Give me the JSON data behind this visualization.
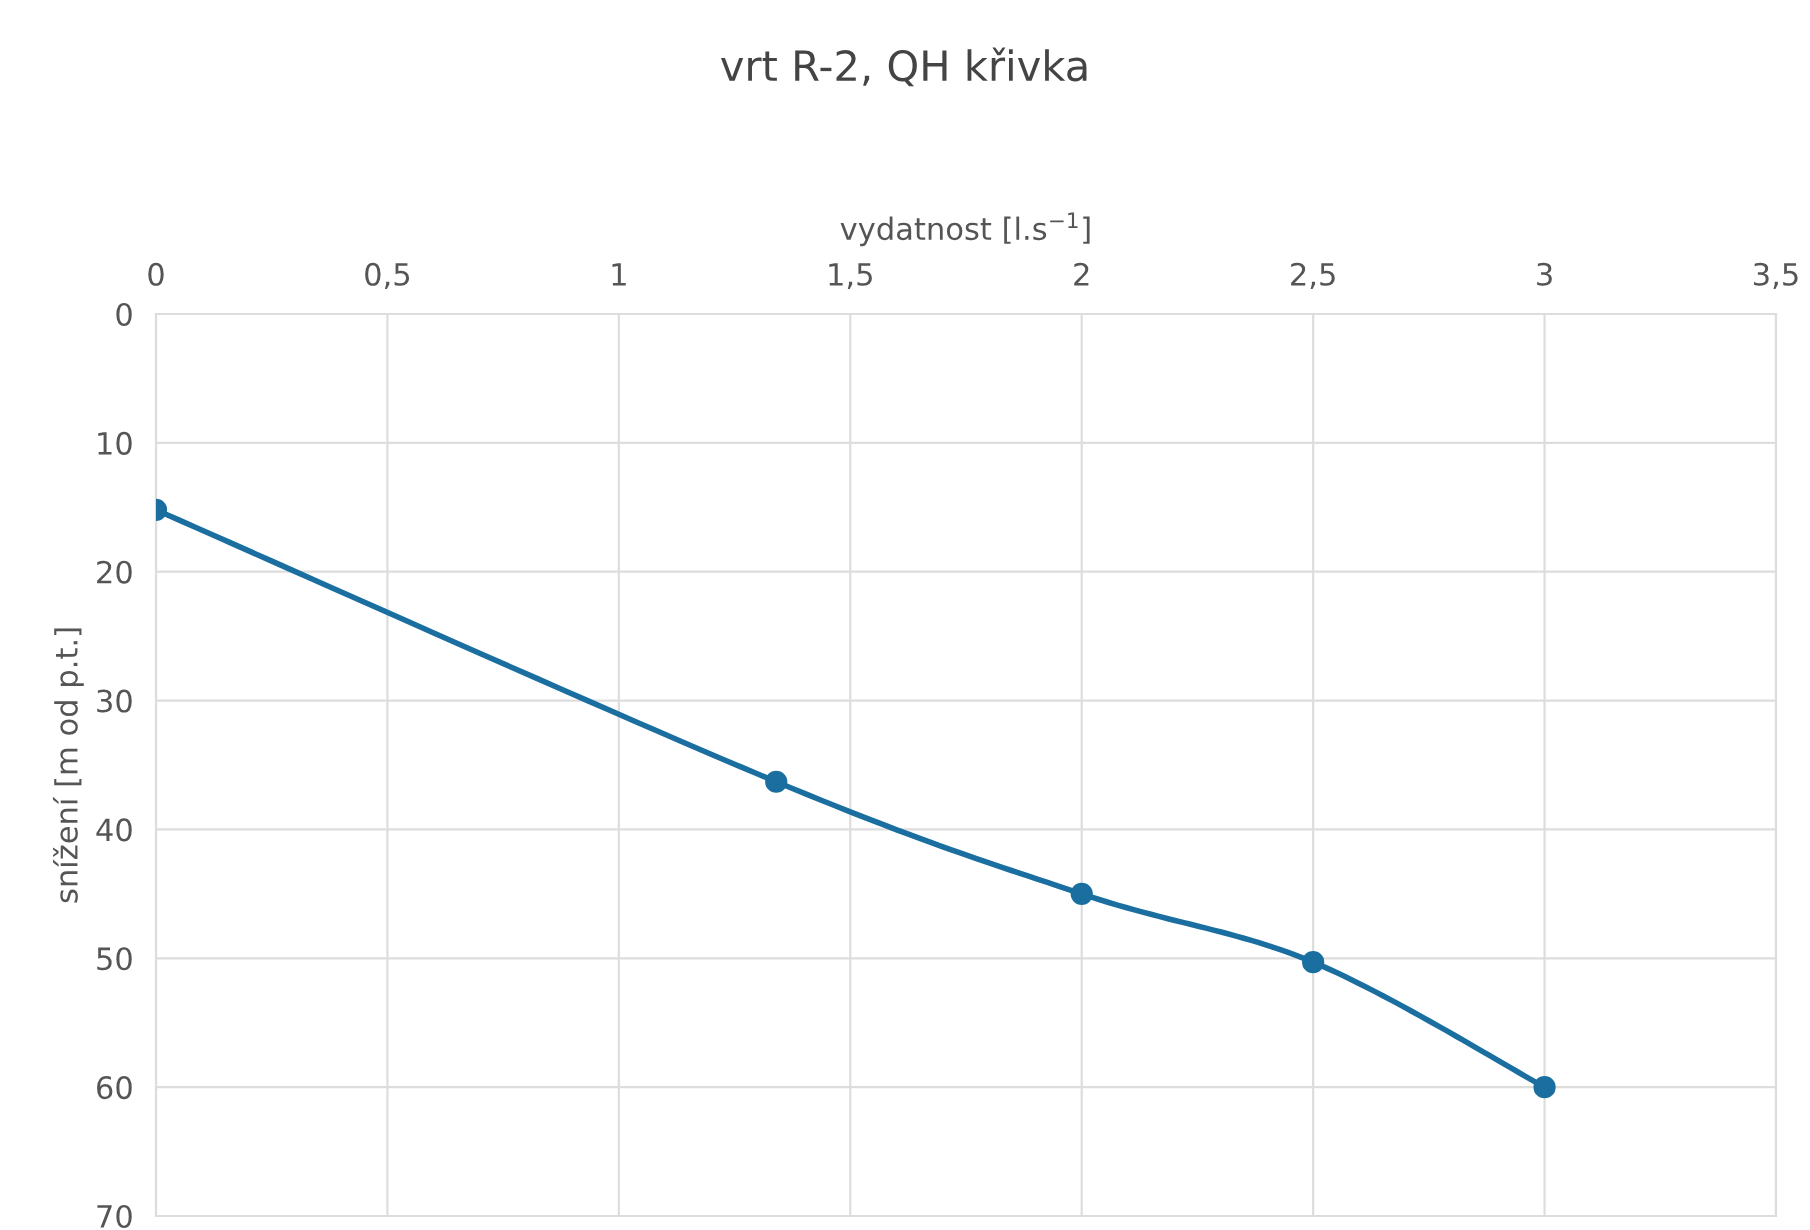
{
  "chart_data": {
    "type": "line",
    "title": "vrt R-2, QH křivka",
    "xlabel": "vydatnost [l.s$^{−1}$]",
    "ylabel": "snížení [m od p.t.]",
    "x": [
      0,
      1.34,
      2,
      2.5,
      3
    ],
    "series": [
      {
        "color": "#1a6fa0",
        "values": [
          15.2,
          36.3,
          45.0,
          50.3,
          60
        ]
      }
    ],
    "xlim": [
      0,
      3.5
    ],
    "xticks": [
      0,
      {
        "value": 0.5,
        "label": "0,5"
      },
      1,
      {
        "value": 1.5,
        "label": "1,5"
      },
      2,
      {
        "value": 2.5,
        "label": "2,5"
      },
      3,
      {
        "value": 3.5,
        "label": "3,5"
      }
    ],
    "ylim": [
      70,
      0
    ],
    "yticks": [
      0,
      10,
      20,
      30,
      40,
      50,
      60,
      70
    ],
    "grid": true,
    "marker": "circle",
    "line_style": "solid"
  }
}
